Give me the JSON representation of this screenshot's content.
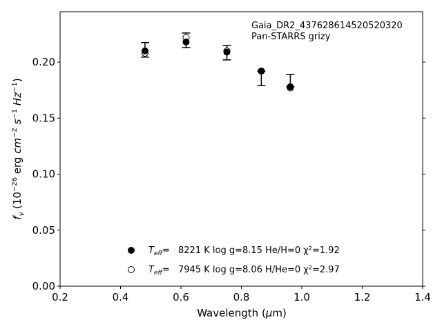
{
  "chart_data": {
    "type": "scatter",
    "title": "",
    "xlabel": "Wavelength (μm)",
    "ylabel": "fν (10⁻²⁶ erg cm⁻² s⁻¹ Hz⁻¹)",
    "xlim": [
      0.2,
      1.4
    ],
    "ylim": [
      0.0,
      0.245
    ],
    "xticks": [
      0.2,
      0.4,
      0.6,
      0.8,
      1.0,
      1.2,
      1.4
    ],
    "xtick_labels": [
      "0.2",
      "0.4",
      "0.6",
      "0.8",
      "1.0",
      "1.2",
      "1.4"
    ],
    "yticks": [
      0.0,
      0.05,
      0.1,
      0.15,
      0.2
    ],
    "ytick_labels": [
      "0.00",
      "0.05",
      "0.10",
      "0.15",
      "0.20"
    ],
    "grid": false,
    "annotation": [
      "Gaia_DR2_437628614520520320",
      "Pan-STARRS grizy"
    ],
    "observed": {
      "x": [
        0.481,
        0.617,
        0.752,
        0.866,
        0.962
      ],
      "y": [
        0.211,
        0.215,
        0.208,
        0.184,
        0.179
      ],
      "yerr_low": [
        0.0065,
        0.002,
        0.006,
        0.005,
        0.001
      ],
      "yerr_high": [
        0.0065,
        0.011,
        0.007,
        0.008,
        0.01
      ]
    },
    "series": [
      {
        "marker": "filled-circle",
        "label_text": "8221 K  log g=8.15  He/H=0  χ²=1.92",
        "x": [
          0.481,
          0.617,
          0.752,
          0.866,
          0.962
        ],
        "y": [
          0.21,
          0.218,
          0.209,
          0.192,
          0.178
        ]
      },
      {
        "marker": "open-circle",
        "label_text": "7945 K  log g=8.06  H/He=0  χ²=2.97",
        "x": [
          0.481,
          0.617,
          0.752,
          0.866,
          0.962
        ],
        "y": [
          0.208,
          0.222,
          0.21,
          0.192,
          0.177
        ]
      }
    ],
    "legend_placement": "bottom-center"
  }
}
